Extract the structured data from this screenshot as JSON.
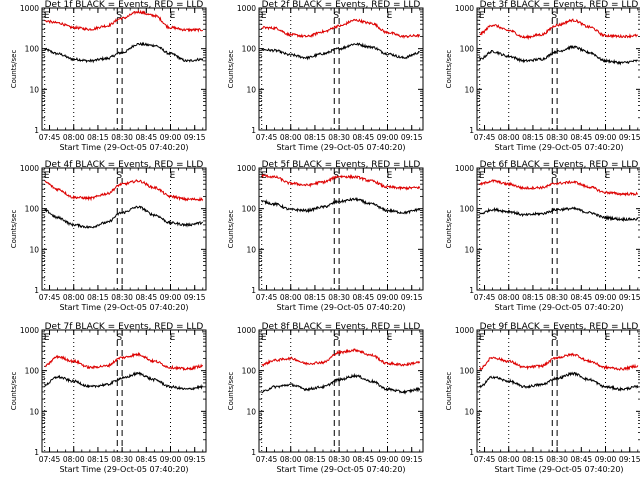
{
  "chart_data": {
    "type": "line",
    "x_start": "07:40:20",
    "x_ticks": [
      "07:45",
      "08:00",
      "08:15",
      "08:30",
      "08:45",
      "09:00",
      "09:15"
    ],
    "x_range": [
      "07:40:20",
      "09:22"
    ],
    "xlabel": "Start Time (29-Oct-05 07:40:20)",
    "ylabel": "Counts/sec",
    "y_scale": "log",
    "ylim": [
      1,
      1000
    ],
    "y_ticks": [
      "1",
      "10",
      "100",
      "1000"
    ],
    "grid": false,
    "legend": "in title",
    "colors": {
      "events": "#000000",
      "lld": "#dd0000"
    },
    "markers": [
      {
        "label": "E",
        "time": "07:42",
        "style": "dotted"
      },
      {
        "label": "",
        "time": "08:00",
        "style": "dotted"
      },
      {
        "label": "S",
        "time": "08:27",
        "style": "dashed"
      },
      {
        "label": "",
        "time": "08:30",
        "style": "dashed"
      },
      {
        "label": "E",
        "time": "09:00",
        "style": "dotted"
      }
    ],
    "panels": [
      {
        "title": "Det 1f BLACK = Events, RED = LLD",
        "series": [
          {
            "name": "Events",
            "color": "#000000",
            "time": [
              "07:42",
              "07:50",
              "08:00",
              "08:10",
              "08:20",
              "08:30",
              "08:40",
              "08:50",
              "09:00",
              "09:10",
              "09:20"
            ],
            "values": [
              95,
              75,
              55,
              50,
              57,
              80,
              130,
              120,
              75,
              50,
              55
            ]
          },
          {
            "name": "LLD",
            "color": "#dd0000",
            "time": [
              "07:42",
              "07:50",
              "08:00",
              "08:10",
              "08:20",
              "08:30",
              "08:40",
              "08:50",
              "09:00",
              "09:10",
              "09:20"
            ],
            "values": [
              480,
              430,
              330,
              300,
              360,
              560,
              800,
              650,
              330,
              290,
              290
            ]
          }
        ]
      },
      {
        "title": "Det 2f BLACK = Events, RED = LLD",
        "series": [
          {
            "name": "Events",
            "color": "#000000",
            "time": [
              "07:42",
              "07:50",
              "08:00",
              "08:10",
              "08:20",
              "08:30",
              "08:40",
              "08:50",
              "09:00",
              "09:10",
              "09:20"
            ],
            "values": [
              95,
              90,
              70,
              60,
              75,
              100,
              130,
              110,
              75,
              60,
              80
            ]
          },
          {
            "name": "LLD",
            "color": "#dd0000",
            "time": [
              "07:42",
              "07:50",
              "08:00",
              "08:10",
              "08:20",
              "08:30",
              "08:40",
              "08:50",
              "09:00",
              "09:10",
              "09:20"
            ],
            "values": [
              330,
              320,
              220,
              200,
              260,
              360,
              500,
              420,
              250,
              200,
              210
            ]
          }
        ]
      },
      {
        "title": "Det 3f BLACK = Events, RED = LLD",
        "series": [
          {
            "name": "Events",
            "color": "#000000",
            "time": [
              "07:42",
              "07:50",
              "08:00",
              "08:10",
              "08:20",
              "08:30",
              "08:40",
              "08:50",
              "09:00",
              "09:10",
              "09:20"
            ],
            "values": [
              55,
              85,
              65,
              50,
              55,
              85,
              110,
              80,
              50,
              45,
              50
            ]
          },
          {
            "name": "LLD",
            "color": "#dd0000",
            "time": [
              "07:42",
              "07:50",
              "08:00",
              "08:10",
              "08:20",
              "08:30",
              "08:40",
              "08:50",
              "09:00",
              "09:10",
              "09:20"
            ],
            "values": [
              230,
              380,
              280,
              190,
              220,
              380,
              500,
              340,
              210,
              200,
              210
            ]
          }
        ]
      },
      {
        "title": "Det 4f BLACK = Events, RED = LLD",
        "series": [
          {
            "name": "Events",
            "color": "#000000",
            "time": [
              "07:42",
              "07:50",
              "08:00",
              "08:10",
              "08:20",
              "08:30",
              "08:40",
              "08:50",
              "09:00",
              "09:10",
              "09:20"
            ],
            "values": [
              90,
              60,
              40,
              35,
              45,
              80,
              110,
              70,
              45,
              40,
              45
            ]
          },
          {
            "name": "LLD",
            "color": "#dd0000",
            "time": [
              "07:42",
              "07:50",
              "08:00",
              "08:10",
              "08:20",
              "08:30",
              "08:40",
              "08:50",
              "09:00",
              "09:10",
              "09:20"
            ],
            "values": [
              450,
              300,
              190,
              180,
              230,
              400,
              480,
              330,
              200,
              170,
              170
            ]
          }
        ]
      },
      {
        "title": "Det 5f BLACK = Events, RED = LLD",
        "series": [
          {
            "name": "Events",
            "color": "#000000",
            "time": [
              "07:42",
              "07:50",
              "08:00",
              "08:10",
              "08:20",
              "08:30",
              "08:40",
              "08:50",
              "09:00",
              "09:10",
              "09:20"
            ],
            "values": [
              150,
              130,
              95,
              90,
              110,
              150,
              170,
              130,
              90,
              80,
              95
            ]
          },
          {
            "name": "LLD",
            "color": "#dd0000",
            "time": [
              "07:42",
              "07:50",
              "08:00",
              "08:10",
              "08:20",
              "08:30",
              "08:40",
              "08:50",
              "09:00",
              "09:10",
              "09:20"
            ],
            "values": [
              650,
              600,
              420,
              380,
              450,
              620,
              600,
              480,
              340,
              320,
              330
            ]
          }
        ]
      },
      {
        "title": "Det 6f BLACK = Events, RED = LLD",
        "series": [
          {
            "name": "Events",
            "color": "#000000",
            "time": [
              "07:42",
              "07:50",
              "08:00",
              "08:10",
              "08:20",
              "08:30",
              "08:40",
              "08:50",
              "09:00",
              "09:10",
              "09:20"
            ],
            "values": [
              75,
              95,
              85,
              70,
              75,
              95,
              100,
              80,
              60,
              55,
              55
            ]
          },
          {
            "name": "LLD",
            "color": "#dd0000",
            "time": [
              "07:42",
              "07:50",
              "08:00",
              "08:10",
              "08:20",
              "08:30",
              "08:40",
              "08:50",
              "09:00",
              "09:10",
              "09:20"
            ],
            "values": [
              400,
              480,
              400,
              320,
              330,
              420,
              450,
              340,
              250,
              230,
              230
            ]
          }
        ]
      },
      {
        "title": "Det 7f BLACK = Events, RED = LLD",
        "series": [
          {
            "name": "Events",
            "color": "#000000",
            "time": [
              "07:42",
              "07:50",
              "08:00",
              "08:10",
              "08:20",
              "08:30",
              "08:40",
              "08:50",
              "09:00",
              "09:10",
              "09:20"
            ],
            "values": [
              45,
              70,
              55,
              40,
              45,
              65,
              85,
              60,
              40,
              35,
              40
            ]
          },
          {
            "name": "LLD",
            "color": "#dd0000",
            "time": [
              "07:42",
              "07:50",
              "08:00",
              "08:10",
              "08:20",
              "08:30",
              "08:40",
              "08:50",
              "09:00",
              "09:10",
              "09:20"
            ],
            "values": [
              130,
              220,
              170,
              120,
              130,
              210,
              250,
              170,
              120,
              110,
              130
            ]
          }
        ]
      },
      {
        "title": "Det 8f BLACK = Events, RED = LLD",
        "series": [
          {
            "name": "Events",
            "color": "#000000",
            "time": [
              "07:42",
              "07:50",
              "08:00",
              "08:10",
              "08:20",
              "08:30",
              "08:40",
              "08:50",
              "09:00",
              "09:10",
              "09:20"
            ],
            "values": [
              30,
              40,
              45,
              35,
              40,
              60,
              75,
              55,
              35,
              30,
              35
            ]
          },
          {
            "name": "LLD",
            "color": "#dd0000",
            "time": [
              "07:42",
              "07:50",
              "08:00",
              "08:10",
              "08:20",
              "08:30",
              "08:40",
              "08:50",
              "09:00",
              "09:10",
              "09:20"
            ],
            "values": [
              140,
              180,
              200,
              150,
              160,
              280,
              320,
              240,
              150,
              140,
              160
            ]
          }
        ]
      },
      {
        "title": "Det 9f BLACK = Events, RED = LLD",
        "series": [
          {
            "name": "Events",
            "color": "#000000",
            "time": [
              "07:42",
              "07:50",
              "08:00",
              "08:10",
              "08:20",
              "08:30",
              "08:40",
              "08:50",
              "09:00",
              "09:10",
              "09:20"
            ],
            "values": [
              40,
              70,
              55,
              40,
              45,
              65,
              85,
              60,
              40,
              35,
              40
            ]
          },
          {
            "name": "LLD",
            "color": "#dd0000",
            "time": [
              "07:42",
              "07:50",
              "08:00",
              "08:10",
              "08:20",
              "08:30",
              "08:40",
              "08:50",
              "09:00",
              "09:10",
              "09:20"
            ],
            "values": [
              110,
              210,
              170,
              120,
              130,
              210,
              250,
              170,
              120,
              110,
              130
            ]
          }
        ]
      }
    ]
  }
}
